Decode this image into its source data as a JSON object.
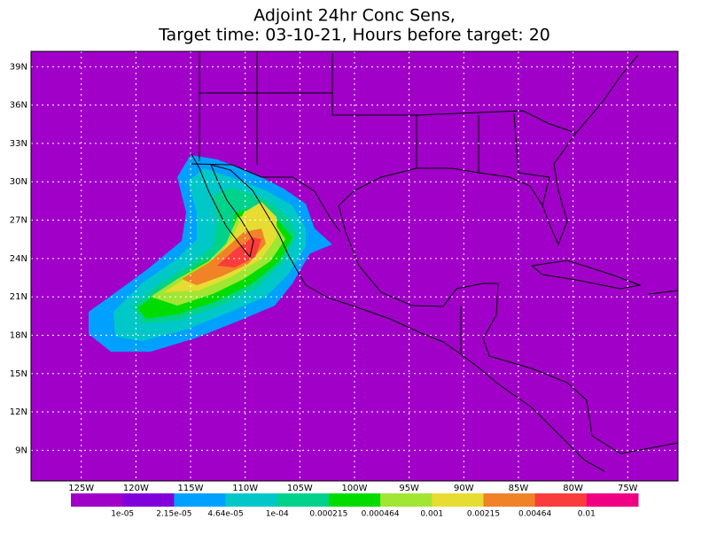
{
  "title": [
    "Adjoint 24hr Conc Sens,",
    "Target time: 03-10-21, Hours before target: 20"
  ],
  "map": {
    "background": "#a000c8",
    "lat_ticks": [
      {
        "value": 39,
        "label": "39N"
      },
      {
        "value": 36,
        "label": "36N"
      },
      {
        "value": 33,
        "label": "33N"
      },
      {
        "value": 30,
        "label": "30N"
      },
      {
        "value": 27,
        "label": "27N"
      },
      {
        "value": 24,
        "label": "24N"
      },
      {
        "value": 21,
        "label": "21N"
      },
      {
        "value": 18,
        "label": "18N"
      },
      {
        "value": 15,
        "label": "15N"
      },
      {
        "value": 12,
        "label": "12N"
      },
      {
        "value": 9,
        "label": "9N"
      }
    ],
    "lon_ticks": [
      {
        "value": -125,
        "label": "125W"
      },
      {
        "value": -120,
        "label": "120W"
      },
      {
        "value": -115,
        "label": "115W"
      },
      {
        "value": -110,
        "label": "110W"
      },
      {
        "value": -105,
        "label": "105W"
      },
      {
        "value": -100,
        "label": "100W"
      },
      {
        "value": -95,
        "label": "95W"
      },
      {
        "value": -90,
        "label": "90W"
      },
      {
        "value": -85,
        "label": "85W"
      },
      {
        "value": -80,
        "label": "80W"
      },
      {
        "value": -75,
        "label": "75W"
      }
    ],
    "lat_range": [
      6.6,
      40.2
    ],
    "lon_range": [
      -129.6,
      -70.4
    ]
  },
  "colorbar": {
    "colors": [
      "#a000c8",
      "#8200dc",
      "#00a0ff",
      "#00c8c8",
      "#00d28c",
      "#00dc00",
      "#a0e632",
      "#e6dc32",
      "#f08228",
      "#fa3c3c",
      "#f00082"
    ],
    "labels": [
      "1e-05",
      "2.15e-05",
      "4.64e-05",
      "1e-04",
      "0.000215",
      "0.000464",
      "0.001",
      "0.00215",
      "0.00464",
      "0.01"
    ]
  }
}
